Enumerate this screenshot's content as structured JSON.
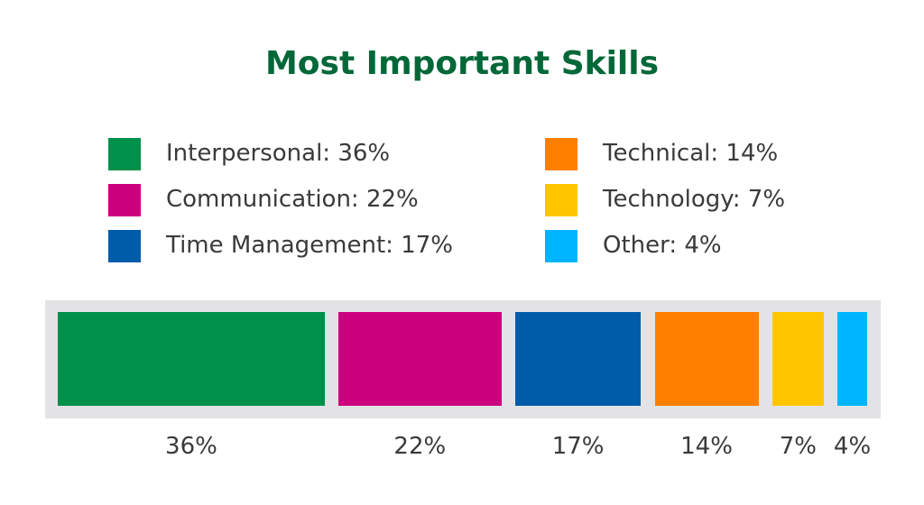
{
  "chart_data": {
    "type": "bar",
    "title": "Most Important Skills",
    "categories": [
      "Interpersonal",
      "Communication",
      "Time Management",
      "Technical",
      "Technology",
      "Other"
    ],
    "values": [
      36,
      22,
      17,
      14,
      7,
      4
    ],
    "unit": "%",
    "legend": [
      {
        "label": "Interpersonal: 36%",
        "color": "#00904a"
      },
      {
        "label": "Communication: 22%",
        "color": "#cc007f"
      },
      {
        "label": "Time Management: 17%",
        "color": "#005ca9"
      },
      {
        "label": "Technical: 14%",
        "color": "#ff7f00"
      },
      {
        "label": "Technology: 7%",
        "color": "#ffc600"
      },
      {
        "label": "Other: 4%",
        "color": "#00b5ff"
      }
    ],
    "value_labels": [
      "36%",
      "22%",
      "17%",
      "14%",
      "7%",
      "4%"
    ],
    "stacked": true,
    "legend_placement": "top",
    "grid": false
  }
}
